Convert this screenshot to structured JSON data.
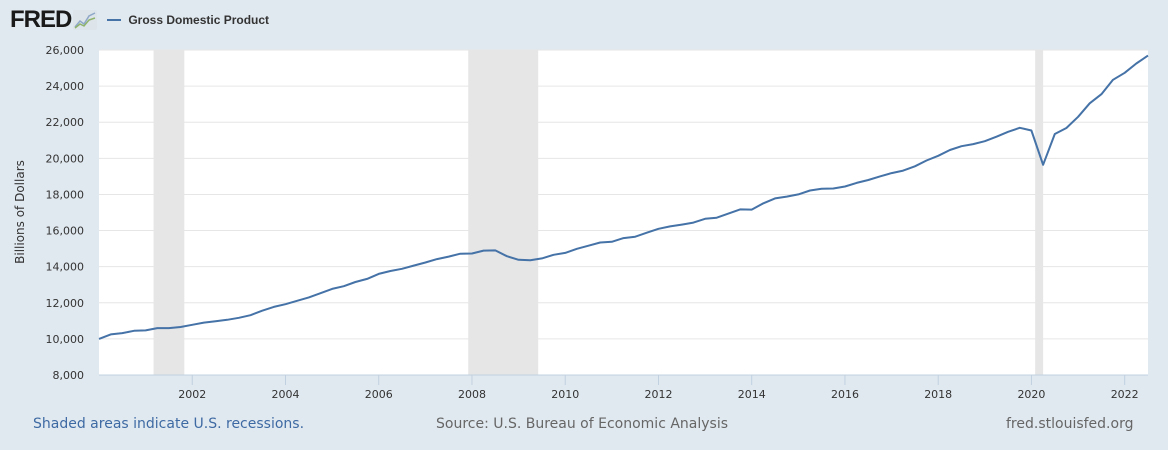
{
  "header": {
    "logo_text": "FRED",
    "legend_label": "Gross Domestic Product",
    "series_color": "#4572a7"
  },
  "footer": {
    "recession_note": "Shaded areas indicate U.S. recessions.",
    "source": "Source: U.S. Bureau of Economic Analysis",
    "site": "fred.stlouisfed.org"
  },
  "chart_data": {
    "type": "line",
    "title": "Gross Domestic Product",
    "xlabel": "",
    "ylabel": "Billions of Dollars",
    "ylim": [
      8000,
      26000
    ],
    "xlim": [
      2000.0,
      2022.5
    ],
    "yticks": [
      "8,000",
      "10,000",
      "12,000",
      "14,000",
      "16,000",
      "18,000",
      "20,000",
      "22,000",
      "24,000",
      "26,000"
    ],
    "xticks": [
      "2002",
      "2004",
      "2006",
      "2008",
      "2010",
      "2012",
      "2014",
      "2016",
      "2018",
      "2020",
      "2022"
    ],
    "grid": true,
    "legend_position": "top-left",
    "recessions": [
      [
        2001.17,
        2001.83
      ],
      [
        2007.92,
        2009.42
      ],
      [
        2020.08,
        2020.25
      ]
    ],
    "series": [
      {
        "name": "Gross Domestic Product",
        "color": "#4572a7",
        "x": [
          2000.0,
          2000.25,
          2000.5,
          2000.75,
          2001.0,
          2001.25,
          2001.5,
          2001.75,
          2002.0,
          2002.25,
          2002.5,
          2002.75,
          2003.0,
          2003.25,
          2003.5,
          2003.75,
          2004.0,
          2004.25,
          2004.5,
          2004.75,
          2005.0,
          2005.25,
          2005.5,
          2005.75,
          2006.0,
          2006.25,
          2006.5,
          2006.75,
          2007.0,
          2007.25,
          2007.5,
          2007.75,
          2008.0,
          2008.25,
          2008.5,
          2008.75,
          2009.0,
          2009.25,
          2009.5,
          2009.75,
          2010.0,
          2010.25,
          2010.5,
          2010.75,
          2011.0,
          2011.25,
          2011.5,
          2011.75,
          2012.0,
          2012.25,
          2012.5,
          2012.75,
          2013.0,
          2013.25,
          2013.5,
          2013.75,
          2014.0,
          2014.25,
          2014.5,
          2014.75,
          2015.0,
          2015.25,
          2015.5,
          2015.75,
          2016.0,
          2016.25,
          2016.5,
          2016.75,
          2017.0,
          2017.25,
          2017.5,
          2017.75,
          2018.0,
          2018.25,
          2018.5,
          2018.75,
          2019.0,
          2019.25,
          2019.5,
          2019.75,
          2020.0,
          2020.25,
          2020.5,
          2020.75,
          2021.0,
          2021.25,
          2021.5,
          2021.75,
          2022.0,
          2022.25,
          2022.5
        ],
        "values": [
          10000,
          10250,
          10320,
          10450,
          10470,
          10600,
          10600,
          10660,
          10780,
          10900,
          10980,
          11060,
          11170,
          11310,
          11560,
          11770,
          11920,
          12110,
          12300,
          12530,
          12770,
          12920,
          13150,
          13320,
          13600,
          13760,
          13880,
          14060,
          14230,
          14420,
          14560,
          14720,
          14730,
          14890,
          14900,
          14580,
          14380,
          14360,
          14460,
          14660,
          14760,
          14990,
          15160,
          15340,
          15380,
          15580,
          15660,
          15880,
          16100,
          16230,
          16330,
          16440,
          16650,
          16710,
          16940,
          17170,
          17160,
          17510,
          17780,
          17880,
          18000,
          18220,
          18320,
          18330,
          18440,
          18640,
          18800,
          19000,
          19180,
          19320,
          19560,
          19880,
          20140,
          20460,
          20670,
          20790,
          20950,
          21200,
          21470,
          21690,
          21540,
          19640,
          21350,
          21680,
          22300,
          23050,
          23550,
          24350,
          24740,
          25250,
          25690
        ]
      }
    ]
  }
}
